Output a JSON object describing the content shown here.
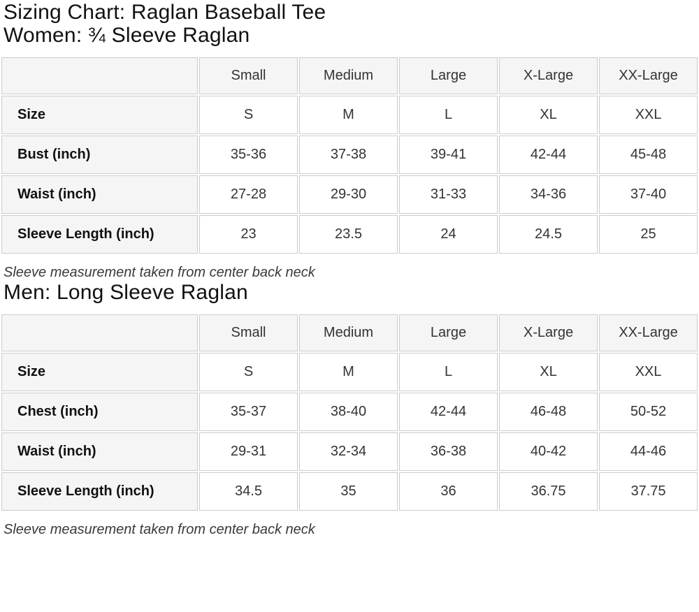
{
  "page": {
    "title": "Sizing Chart: Raglan Baseball Tee"
  },
  "colors": {
    "cell_background_gray": "#f5f5f5",
    "cell_background_white": "#ffffff",
    "border": "#cccccc",
    "heading_text": "#111111",
    "value_text": "#333333"
  },
  "women_section": {
    "heading": "Women: ¾ Sleeve Raglan",
    "note": "Sleeve measurement taken from center back neck",
    "table": {
      "columns": [
        "",
        "Small",
        "Medium",
        "Large",
        "X-Large",
        "XX-Large"
      ],
      "rows": [
        {
          "label": "Size",
          "values": [
            "S",
            "M",
            "L",
            "XL",
            "XXL"
          ]
        },
        {
          "label": "Bust (inch)",
          "values": [
            "35-36",
            "37-38",
            "39-41",
            "42-44",
            "45-48"
          ]
        },
        {
          "label": "Waist (inch)",
          "values": [
            "27-28",
            "29-30",
            "31-33",
            "34-36",
            "37-40"
          ]
        },
        {
          "label": "Sleeve Length (inch)",
          "values": [
            "23",
            "23.5",
            "24",
            "24.5",
            "25"
          ]
        }
      ]
    }
  },
  "men_section": {
    "heading": "Men: Long Sleeve Raglan",
    "note": "Sleeve measurement taken from center back neck",
    "table": {
      "columns": [
        "",
        "Small",
        "Medium",
        "Large",
        "X-Large",
        "XX-Large"
      ],
      "rows": [
        {
          "label": "Size",
          "values": [
            "S",
            "M",
            "L",
            "XL",
            "XXL"
          ]
        },
        {
          "label": "Chest (inch)",
          "values": [
            "35-37",
            "38-40",
            "42-44",
            "46-48",
            "50-52"
          ]
        },
        {
          "label": "Waist (inch)",
          "values": [
            "29-31",
            "32-34",
            "36-38",
            "40-42",
            "44-46"
          ]
        },
        {
          "label": "Sleeve Length (inch)",
          "values": [
            "34.5",
            "35",
            "36",
            "36.75",
            "37.75"
          ]
        }
      ]
    }
  }
}
